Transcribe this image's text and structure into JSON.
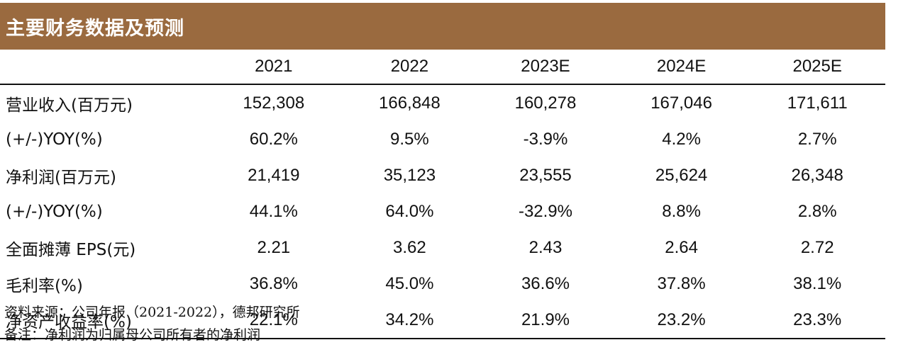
{
  "header": {
    "title": "主要财务数据及预测"
  },
  "table": {
    "columns": [
      "2021",
      "2022",
      "2023E",
      "2024E",
      "2025E"
    ],
    "rows": [
      {
        "label": "营业收入(百万元)",
        "values": [
          "152,308",
          "166,848",
          "160,278",
          "167,046",
          "171,611"
        ]
      },
      {
        "label": "(+/-)YOY(%)",
        "values": [
          "60.2%",
          "9.5%",
          "-3.9%",
          "4.2%",
          "2.7%"
        ]
      },
      {
        "label": "净利润(百万元)",
        "values": [
          "21,419",
          "35,123",
          "23,555",
          "25,624",
          "26,348"
        ]
      },
      {
        "label": "(+/-)YOY(%)",
        "values": [
          "44.1%",
          "64.0%",
          "-32.9%",
          "8.8%",
          "2.8%"
        ]
      },
      {
        "label": "全面摊薄 EPS(元)",
        "values": [
          "2.21",
          "3.62",
          "2.43",
          "2.64",
          "2.72"
        ]
      },
      {
        "label": "毛利率(%)",
        "values": [
          "36.8%",
          "45.0%",
          "36.6%",
          "37.8%",
          "38.1%"
        ]
      },
      {
        "label": "净资产收益率(%)",
        "values": [
          "22.1%",
          "34.2%",
          "21.9%",
          "23.2%",
          "23.3%"
        ]
      }
    ]
  },
  "notes": {
    "source": "资料来源：公司年报（2021-2022），德邦研究所",
    "remark": "备注：净利润为归属母公司所有者的净利润"
  },
  "colors": {
    "header_background": "#9a6a3f",
    "header_text": "#ffffff"
  }
}
